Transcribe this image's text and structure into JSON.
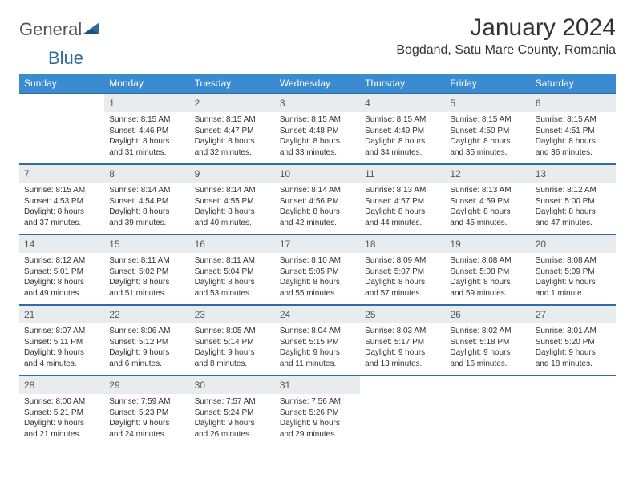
{
  "logo": {
    "text1": "General",
    "text2": "Blue",
    "color1": "#666666",
    "color2": "#2e6da4"
  },
  "title": "January 2024",
  "location": "Bogdand, Satu Mare County, Romania",
  "header_bg": "#3b8bd0",
  "border_color": "#2e6da4",
  "daynum_bg": "#e8ecef",
  "day_headers": [
    "Sunday",
    "Monday",
    "Tuesday",
    "Wednesday",
    "Thursday",
    "Friday",
    "Saturday"
  ],
  "start_offset": 1,
  "days": [
    {
      "n": 1,
      "sr": "8:15 AM",
      "ss": "4:46 PM",
      "dl": "8 hours and 31 minutes."
    },
    {
      "n": 2,
      "sr": "8:15 AM",
      "ss": "4:47 PM",
      "dl": "8 hours and 32 minutes."
    },
    {
      "n": 3,
      "sr": "8:15 AM",
      "ss": "4:48 PM",
      "dl": "8 hours and 33 minutes."
    },
    {
      "n": 4,
      "sr": "8:15 AM",
      "ss": "4:49 PM",
      "dl": "8 hours and 34 minutes."
    },
    {
      "n": 5,
      "sr": "8:15 AM",
      "ss": "4:50 PM",
      "dl": "8 hours and 35 minutes."
    },
    {
      "n": 6,
      "sr": "8:15 AM",
      "ss": "4:51 PM",
      "dl": "8 hours and 36 minutes."
    },
    {
      "n": 7,
      "sr": "8:15 AM",
      "ss": "4:53 PM",
      "dl": "8 hours and 37 minutes."
    },
    {
      "n": 8,
      "sr": "8:14 AM",
      "ss": "4:54 PM",
      "dl": "8 hours and 39 minutes."
    },
    {
      "n": 9,
      "sr": "8:14 AM",
      "ss": "4:55 PM",
      "dl": "8 hours and 40 minutes."
    },
    {
      "n": 10,
      "sr": "8:14 AM",
      "ss": "4:56 PM",
      "dl": "8 hours and 42 minutes."
    },
    {
      "n": 11,
      "sr": "8:13 AM",
      "ss": "4:57 PM",
      "dl": "8 hours and 44 minutes."
    },
    {
      "n": 12,
      "sr": "8:13 AM",
      "ss": "4:59 PM",
      "dl": "8 hours and 45 minutes."
    },
    {
      "n": 13,
      "sr": "8:12 AM",
      "ss": "5:00 PM",
      "dl": "8 hours and 47 minutes."
    },
    {
      "n": 14,
      "sr": "8:12 AM",
      "ss": "5:01 PM",
      "dl": "8 hours and 49 minutes."
    },
    {
      "n": 15,
      "sr": "8:11 AM",
      "ss": "5:02 PM",
      "dl": "8 hours and 51 minutes."
    },
    {
      "n": 16,
      "sr": "8:11 AM",
      "ss": "5:04 PM",
      "dl": "8 hours and 53 minutes."
    },
    {
      "n": 17,
      "sr": "8:10 AM",
      "ss": "5:05 PM",
      "dl": "8 hours and 55 minutes."
    },
    {
      "n": 18,
      "sr": "8:09 AM",
      "ss": "5:07 PM",
      "dl": "8 hours and 57 minutes."
    },
    {
      "n": 19,
      "sr": "8:08 AM",
      "ss": "5:08 PM",
      "dl": "8 hours and 59 minutes."
    },
    {
      "n": 20,
      "sr": "8:08 AM",
      "ss": "5:09 PM",
      "dl": "9 hours and 1 minute."
    },
    {
      "n": 21,
      "sr": "8:07 AM",
      "ss": "5:11 PM",
      "dl": "9 hours and 4 minutes."
    },
    {
      "n": 22,
      "sr": "8:06 AM",
      "ss": "5:12 PM",
      "dl": "9 hours and 6 minutes."
    },
    {
      "n": 23,
      "sr": "8:05 AM",
      "ss": "5:14 PM",
      "dl": "9 hours and 8 minutes."
    },
    {
      "n": 24,
      "sr": "8:04 AM",
      "ss": "5:15 PM",
      "dl": "9 hours and 11 minutes."
    },
    {
      "n": 25,
      "sr": "8:03 AM",
      "ss": "5:17 PM",
      "dl": "9 hours and 13 minutes."
    },
    {
      "n": 26,
      "sr": "8:02 AM",
      "ss": "5:18 PM",
      "dl": "9 hours and 16 minutes."
    },
    {
      "n": 27,
      "sr": "8:01 AM",
      "ss": "5:20 PM",
      "dl": "9 hours and 18 minutes."
    },
    {
      "n": 28,
      "sr": "8:00 AM",
      "ss": "5:21 PM",
      "dl": "9 hours and 21 minutes."
    },
    {
      "n": 29,
      "sr": "7:59 AM",
      "ss": "5:23 PM",
      "dl": "9 hours and 24 minutes."
    },
    {
      "n": 30,
      "sr": "7:57 AM",
      "ss": "5:24 PM",
      "dl": "9 hours and 26 minutes."
    },
    {
      "n": 31,
      "sr": "7:56 AM",
      "ss": "5:26 PM",
      "dl": "9 hours and 29 minutes."
    }
  ],
  "labels": {
    "sunrise": "Sunrise:",
    "sunset": "Sunset:",
    "daylight": "Daylight:"
  }
}
